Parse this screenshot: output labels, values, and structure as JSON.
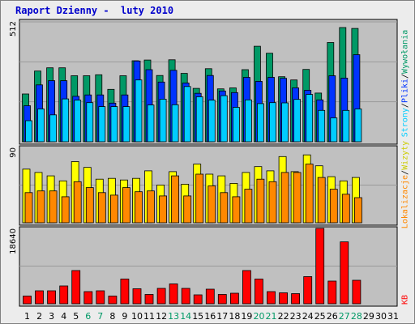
{
  "title": "Raport Dzienny -  luty 2010",
  "colors": {
    "wizyty": "#009966",
    "strony": "#0033ff",
    "pliki": "#00ccff",
    "lokalizacje": "#ff8800",
    "unikalne": "#ffff00",
    "kb": "#ff0000",
    "title": "#0000cc",
    "weekend": "#009966",
    "weekday": "#000000"
  },
  "right_labels": {
    "top": {
      "wizyty": "Wywołania",
      "sep1": "/",
      "pliki": "Pliki",
      "sep2": "/",
      "strony": "Strony"
    },
    "middle": {
      "unikalne": "Wizyty",
      "sep": "/",
      "lokalizacje": "Lokalizacje"
    },
    "bottom": {
      "kb": "KB"
    }
  },
  "chart_data": {
    "type": "bar",
    "title": "Raport Dzienny -  luty 2010",
    "x": [
      "1",
      "2",
      "3",
      "4",
      "5",
      "6",
      "7",
      "8",
      "9",
      "10",
      "11",
      "12",
      "13",
      "14",
      "15",
      "16",
      "17",
      "18",
      "19",
      "20",
      "21",
      "22",
      "23",
      "24",
      "25",
      "26",
      "27",
      "28",
      "29",
      "30",
      "31"
    ],
    "weekend_days": [
      "6",
      "7",
      "13",
      "14",
      "20",
      "21",
      "27",
      "28"
    ],
    "panels": [
      {
        "name": "hits",
        "ymax_label": "512",
        "ylim": [
          0,
          512
        ],
        "series": [
          {
            "name": "Wywołania",
            "color": "#009966",
            "values": [
              204,
              302,
              316,
              316,
              282,
              282,
              286,
              224,
              282,
              346,
              349,
              283,
              350,
              292,
              228,
              312,
              226,
              230,
              308,
              408,
              378,
              278,
              264,
              309,
              208,
              424,
              488,
              484,
              0,
              0,
              0
            ]
          },
          {
            "name": "Pliki",
            "color": "#0033ff",
            "values": [
              154,
              243,
              261,
              261,
              194,
              200,
              200,
              165,
              200,
              345,
              308,
              255,
              305,
              251,
              207,
              283,
              217,
              210,
              275,
              258,
              275,
              271,
              230,
              220,
              179,
              282,
              272,
              372,
              0,
              0,
              0
            ]
          },
          {
            "name": "Strony",
            "color": "#00ccff",
            "values": [
              90,
              140,
              115,
              183,
              178,
              167,
              150,
              150,
              150,
              264,
              157,
              182,
              158,
              236,
              192,
              178,
              197,
              147,
              179,
              163,
              167,
              166,
              181,
              202,
              134,
              102,
              134,
              140,
              0,
              0,
              0
            ]
          }
        ]
      },
      {
        "name": "visits",
        "ymax_label": "90",
        "ylim": [
          0,
          90
        ],
        "series": [
          {
            "name": "Wizyty",
            "color": "#ffff00",
            "values": [
              64,
              60,
              56,
              50,
              73,
              66,
              52,
              53,
              51,
              53,
              62,
              45,
              61,
              46,
              70,
              58,
              56,
              47,
              60,
              67,
              62,
              79,
              61,
              81,
              68,
              55,
              50,
              54,
              0,
              0,
              0
            ]
          },
          {
            "name": "Lokalizacje",
            "color": "#ff8800",
            "values": [
              36,
              38,
              38,
              31,
              49,
              42,
              36,
              33,
              42,
              37,
              38,
              32,
              56,
              32,
              58,
              44,
              36,
              31,
              40,
              52,
              49,
              60,
              60,
              70,
              54,
              40,
              34,
              30,
              0,
              0,
              0
            ]
          }
        ]
      },
      {
        "name": "kb",
        "ymax_label": "18640",
        "ylim": [
          0,
          18640
        ],
        "series": [
          {
            "name": "KB",
            "color": "#ff0000",
            "values": [
              1900,
              3200,
              3200,
              4400,
              8200,
              3000,
              3200,
              1900,
              6100,
              3700,
              2300,
              3800,
              4900,
              3800,
              2200,
              3600,
              2300,
              2600,
              8200,
              6100,
              3000,
              2700,
              2500,
              6700,
              18640,
              5600,
              15300,
              5800,
              0,
              0,
              0
            ]
          }
        ]
      }
    ]
  }
}
